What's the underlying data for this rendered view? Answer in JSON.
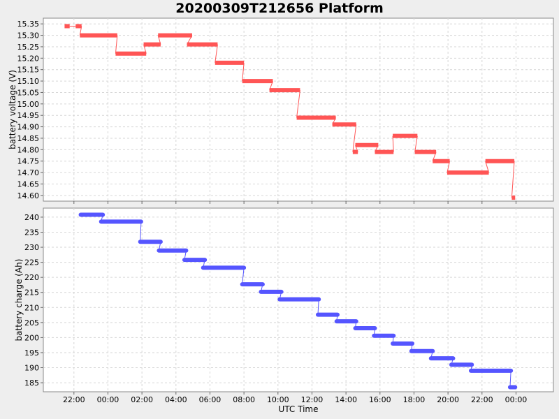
{
  "title": "20200309T212656 Platform",
  "chart_data": [
    {
      "type": "line",
      "ylabel": "battery voltage (V)",
      "xlabel": "",
      "ylim": [
        14.575,
        15.375
      ],
      "yticks": [
        "14.60",
        "14.65",
        "14.70",
        "14.75",
        "14.80",
        "14.85",
        "14.90",
        "14.95",
        "15.00",
        "15.05",
        "15.10",
        "15.15",
        "15.20",
        "15.25",
        "15.30",
        "15.35"
      ],
      "color": "#ff5555",
      "series": [
        {
          "segments": [
            [
              21.45,
              21.75,
              15.34
            ],
            [
              22.1,
              22.45,
              15.34
            ],
            [
              22.35,
              24.55,
              15.3
            ],
            [
              24.45,
              26.25,
              15.22
            ],
            [
              26.1,
              27.1,
              15.26
            ],
            [
              26.95,
              28.95,
              15.3
            ],
            [
              28.65,
              30.45,
              15.26
            ],
            [
              30.3,
              32.0,
              15.18
            ],
            [
              31.9,
              33.7,
              15.1
            ],
            [
              33.5,
              35.3,
              15.06
            ],
            [
              35.1,
              37.4,
              14.94
            ],
            [
              37.2,
              38.6,
              14.91
            ],
            [
              38.4,
              38.7,
              14.79
            ],
            [
              38.55,
              39.9,
              14.82
            ],
            [
              39.7,
              40.8,
              14.79
            ],
            [
              40.75,
              42.2,
              14.86
            ],
            [
              42.05,
              43.3,
              14.79
            ],
            [
              43.1,
              44.1,
              14.75
            ],
            [
              43.95,
              46.4,
              14.7
            ],
            [
              46.2,
              47.9,
              14.75
            ],
            [
              47.75,
              47.95,
              14.59
            ]
          ]
        }
      ]
    },
    {
      "type": "line",
      "ylabel": "battery charge (Ah)",
      "xlabel": "UTC Time",
      "ylim": [
        182,
        243
      ],
      "yticks": [
        "185",
        "190",
        "195",
        "200",
        "205",
        "210",
        "215",
        "220",
        "225",
        "230",
        "235",
        "240"
      ],
      "xticks": [
        "22:00",
        "00:00",
        "02:00",
        "04:00",
        "06:00",
        "08:00",
        "10:00",
        "12:00",
        "14:00",
        "16:00",
        "18:00",
        "20:00",
        "22:00",
        "00:00"
      ],
      "color": "#5555ff",
      "series": [
        {
          "segments": [
            [
              22.4,
              23.7,
              240.8
            ],
            [
              23.6,
              25.95,
              238.5
            ],
            [
              25.9,
              27.1,
              231.8
            ],
            [
              27.0,
              28.6,
              228.9
            ],
            [
              28.5,
              29.7,
              225.8
            ],
            [
              29.6,
              32.0,
              223.2
            ],
            [
              31.9,
              33.1,
              217.7
            ],
            [
              33.0,
              34.2,
              215.2
            ],
            [
              34.1,
              36.4,
              212.7
            ],
            [
              36.35,
              37.5,
              207.6
            ],
            [
              37.45,
              38.6,
              205.4
            ],
            [
              38.55,
              39.7,
              203.1
            ],
            [
              39.65,
              40.8,
              200.6
            ],
            [
              40.75,
              41.9,
              198.0
            ],
            [
              41.85,
              43.1,
              195.5
            ],
            [
              43.0,
              44.3,
              193.1
            ],
            [
              44.2,
              45.4,
              191.0
            ],
            [
              45.35,
              47.7,
              189.0
            ],
            [
              47.65,
              47.95,
              183.5
            ]
          ]
        }
      ]
    }
  ]
}
